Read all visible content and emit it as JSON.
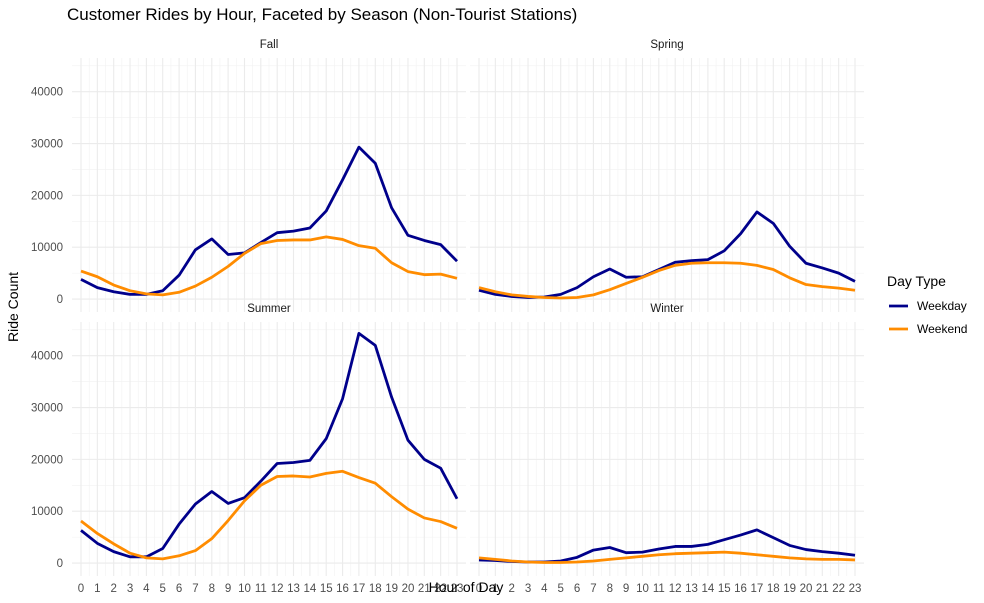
{
  "chart_data": {
    "type": "line",
    "title": "Customer Rides by Hour, Faceted by Season (Non-Tourist Stations)",
    "xlabel": "Hour of Day",
    "ylabel": "Ride Count",
    "x": [
      0,
      1,
      2,
      3,
      4,
      5,
      6,
      7,
      8,
      9,
      10,
      11,
      12,
      13,
      14,
      15,
      16,
      17,
      18,
      19,
      20,
      21,
      22,
      23
    ],
    "x_tick_labels": [
      "0",
      "1",
      "2",
      "3",
      "4",
      "5",
      "6",
      "7",
      "8",
      "9",
      "10",
      "11",
      "12",
      "13",
      "14",
      "15",
      "16",
      "17",
      "18",
      "19",
      "20",
      "21",
      "22",
      "23"
    ],
    "ylim": [
      -2500,
      46500
    ],
    "y_ticks": [
      0,
      10000,
      20000,
      30000,
      40000
    ],
    "y_tick_labels": [
      "0",
      "10000",
      "20000",
      "30000",
      "40000"
    ],
    "grid": true,
    "legend": {
      "title": "Day Type",
      "position": "right",
      "entries": [
        {
          "name": "Weekday",
          "color": "#00008B"
        },
        {
          "name": "Weekend",
          "color": "#FF8C00"
        }
      ]
    },
    "facets": [
      {
        "name": "Fall",
        "series": [
          {
            "name": "Weekday",
            "color": "#00008B",
            "values": [
              3800,
              2200,
              1400,
              900,
              900,
              1600,
              4600,
              9500,
              11600,
              8600,
              8900,
              10900,
              12800,
              13100,
              13700,
              17000,
              23000,
              29300,
              26200,
              17600,
              12300,
              11300,
              10500,
              7300
            ]
          },
          {
            "name": "Weekend",
            "color": "#FF8C00",
            "values": [
              5400,
              4300,
              2700,
              1600,
              1000,
              800,
              1300,
              2500,
              4200,
              6300,
              8800,
              10700,
              11300,
              11400,
              11400,
              12000,
              11500,
              10300,
              9800,
              7000,
              5300,
              4700,
              4800,
              4000
            ]
          }
        ]
      },
      {
        "name": "Spring",
        "series": [
          {
            "name": "Weekday",
            "color": "#00008B",
            "values": [
              1700,
              900,
              500,
              300,
              400,
              900,
              2200,
              4300,
              5800,
              4200,
              4300,
              5700,
              7100,
              7400,
              7600,
              9300,
              12600,
              16800,
              14600,
              10200,
              6900,
              6000,
              5000,
              3400
            ]
          },
          {
            "name": "Weekend",
            "color": "#FF8C00",
            "values": [
              2200,
              1400,
              800,
              500,
              300,
              200,
              300,
              800,
              1800,
              3000,
              4200,
              5500,
              6500,
              6900,
              7000,
              7000,
              6900,
              6500,
              5700,
              4100,
              2800,
              2400,
              2100,
              1700
            ]
          }
        ]
      },
      {
        "name": "Summer",
        "series": [
          {
            "name": "Weekday",
            "color": "#00008B",
            "values": [
              6300,
              3800,
              2200,
              1200,
              1200,
              2800,
              7500,
              11400,
              13800,
              11500,
              12600,
              15800,
              19200,
              19400,
              19800,
              24000,
              31700,
              44300,
              42000,
              32000,
              23700,
              20000,
              18300,
              12400
            ]
          },
          {
            "name": "Weekend",
            "color": "#FF8C00",
            "values": [
              8100,
              5700,
              3700,
              1900,
              1000,
              800,
              1400,
              2400,
              4700,
              8200,
              12000,
              15000,
              16700,
              16800,
              16600,
              17300,
              17700,
              16500,
              15400,
              12800,
              10400,
              8700,
              8000,
              6700
            ]
          }
        ]
      },
      {
        "name": "Winter",
        "series": [
          {
            "name": "Weekday",
            "color": "#00008B",
            "values": [
              600,
              500,
              300,
              200,
              200,
              400,
              1100,
              2500,
              3000,
              2000,
              2100,
              2700,
              3200,
              3200,
              3600,
              4500,
              5400,
              6400,
              4900,
              3400,
              2600,
              2200,
              1900,
              1500
            ]
          },
          {
            "name": "Weekend",
            "color": "#FF8C00",
            "values": [
              1000,
              700,
              400,
              200,
              100,
              100,
              200,
              400,
              700,
              1000,
              1300,
              1600,
              1800,
              1900,
              2000,
              2100,
              1900,
              1600,
              1300,
              1000,
              800,
              700,
              700,
              600
            ]
          }
        ]
      }
    ]
  }
}
